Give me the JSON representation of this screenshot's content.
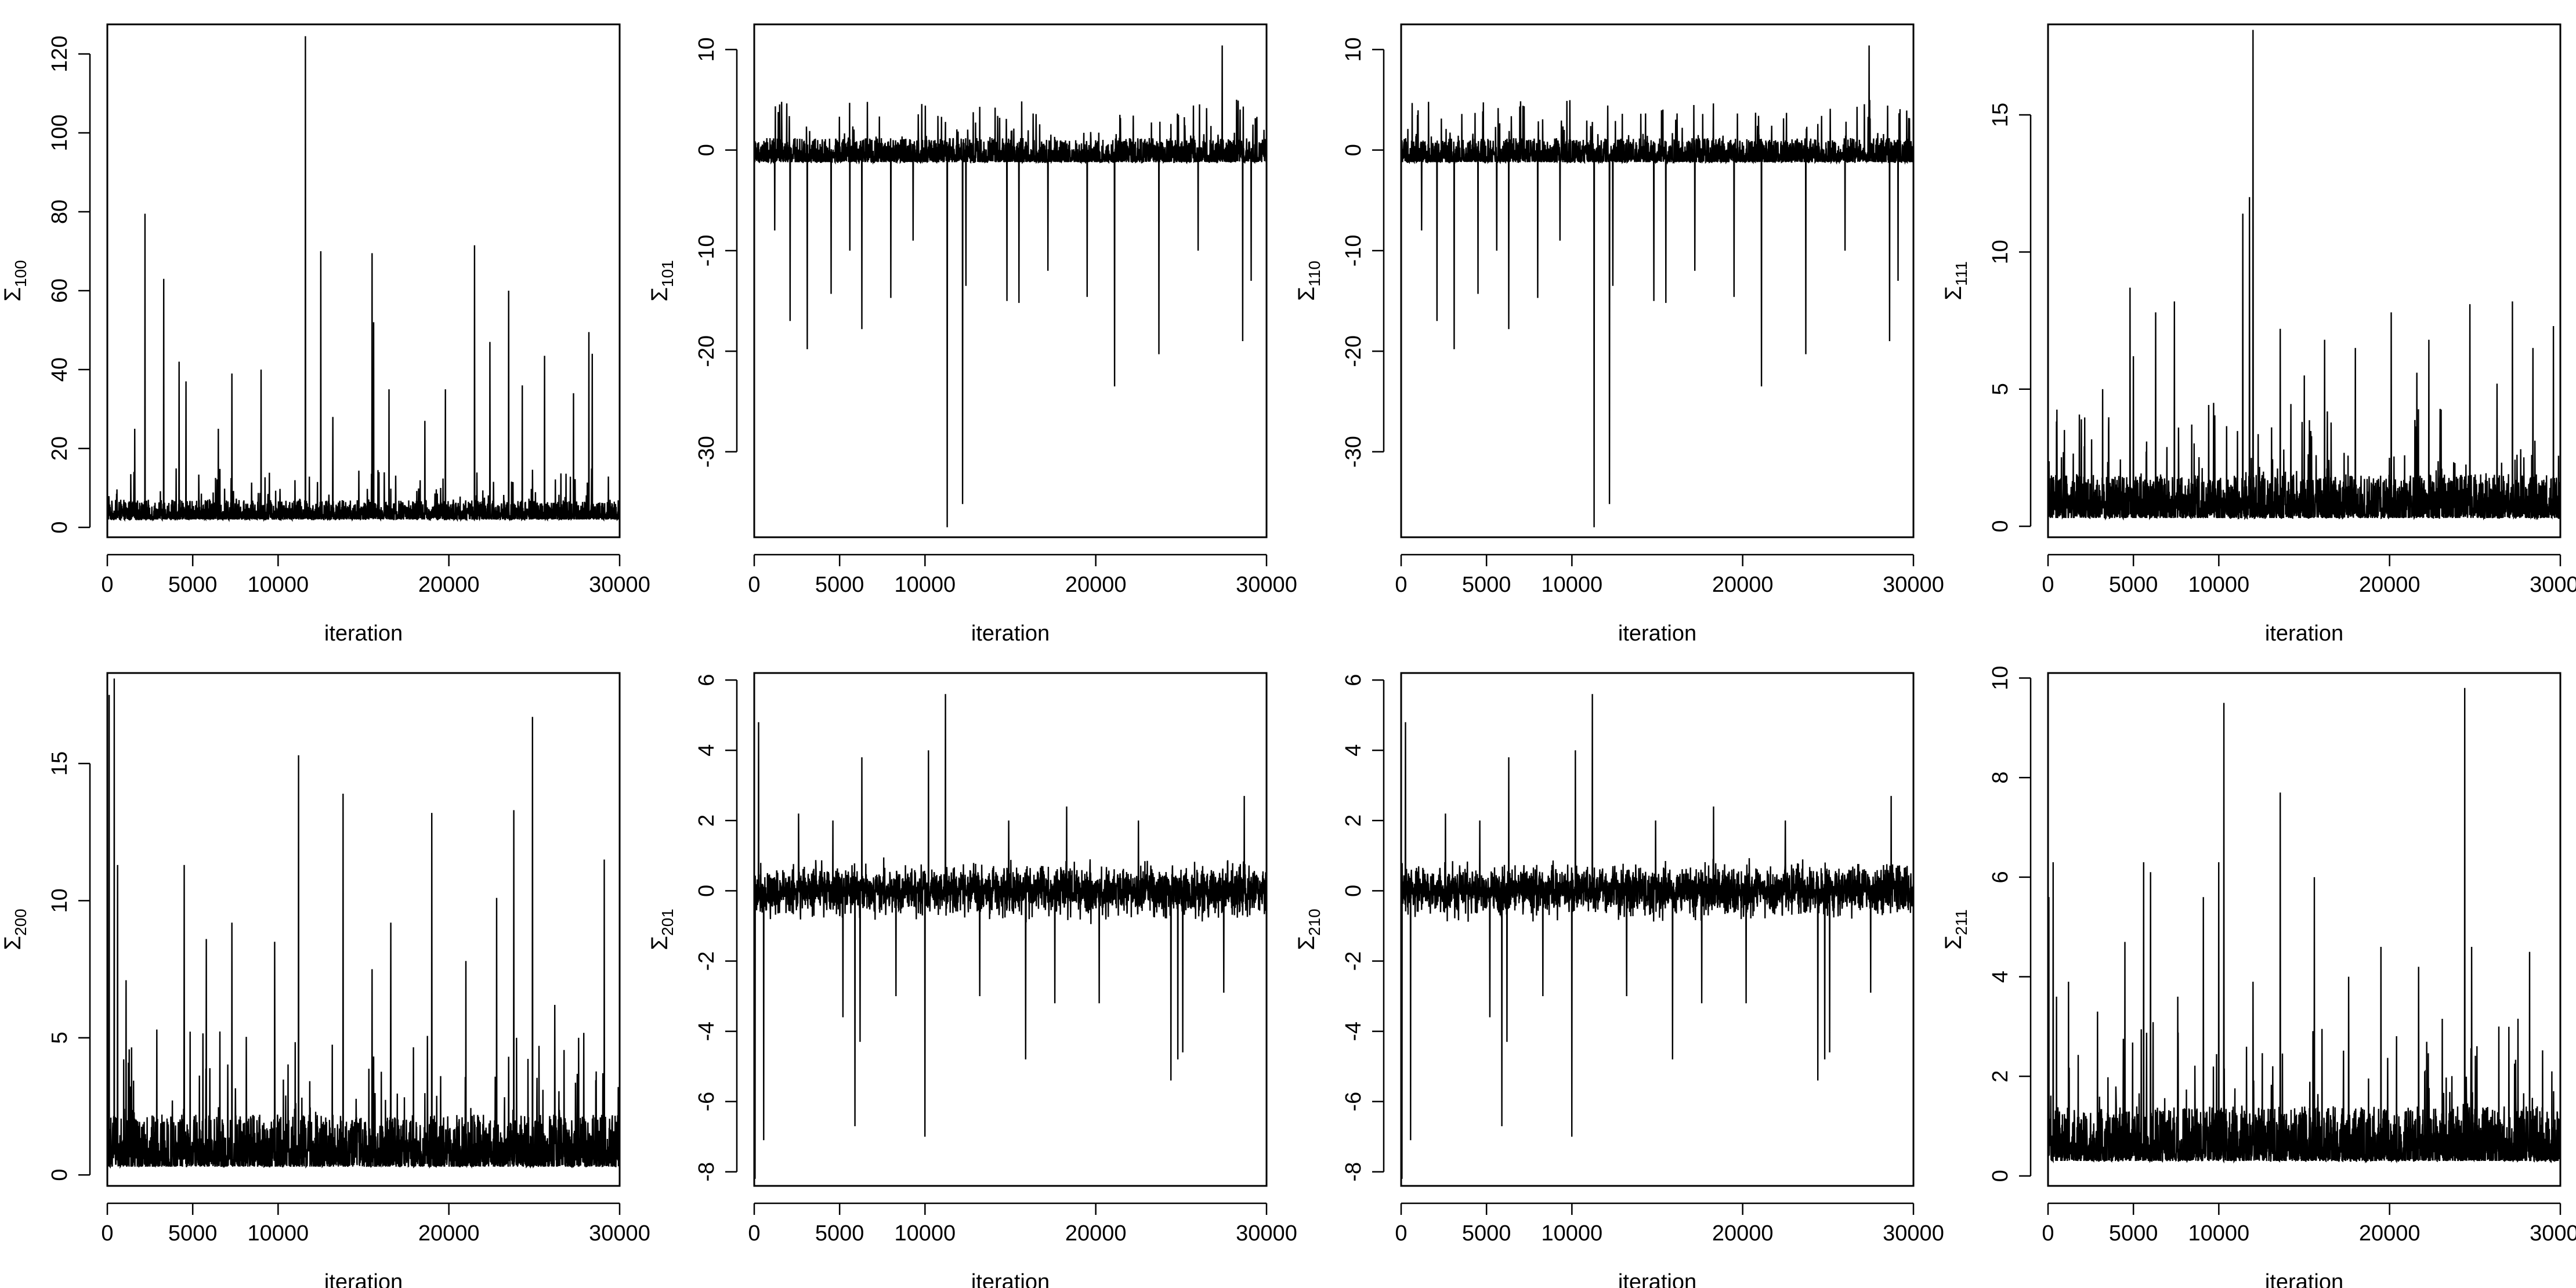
{
  "chart_data": [
    {
      "type": "line",
      "xlabel": "iteration",
      "ylabel_base": "Σ",
      "ylabel_sub": "100",
      "xlim": [
        0,
        30000
      ],
      "ylim": [
        -2.5,
        127.5
      ],
      "xticks": [
        0,
        5000,
        10000,
        20000,
        30000
      ],
      "yticks": [
        0,
        20,
        40,
        60,
        80,
        100,
        120
      ],
      "ytick_labels": [
        "0",
        "20",
        "40",
        "60",
        "80",
        "100",
        "120"
      ],
      "series": [
        {
          "baseline": 2.0,
          "noise_amp": 5.0,
          "noise_floor": 0.5,
          "spikes": [
            [
              2200,
              79.5
            ],
            [
              3300,
              63
            ],
            [
              4200,
              42
            ],
            [
              4600,
              37
            ],
            [
              7300,
              39
            ],
            [
              9000,
              40
            ],
            [
              11600,
              124.5
            ],
            [
              12500,
              70
            ],
            [
              15500,
              69.5
            ],
            [
              15600,
              52
            ],
            [
              16500,
              35
            ],
            [
              19800,
              35
            ],
            [
              21500,
              71.5
            ],
            [
              22400,
              47
            ],
            [
              23500,
              60
            ],
            [
              25600,
              43.5
            ],
            [
              27300,
              34
            ],
            [
              28200,
              49.5
            ],
            [
              28400,
              44
            ],
            [
              1600,
              25
            ],
            [
              6500,
              25
            ],
            [
              13200,
              28
            ],
            [
              18600,
              27
            ],
            [
              24300,
              36
            ]
          ]
        }
      ]
    },
    {
      "type": "line",
      "xlabel": "iteration",
      "ylabel_base": "Σ",
      "ylabel_sub": "101",
      "xlim": [
        0,
        30000
      ],
      "ylim": [
        -38.5,
        12.5
      ],
      "xticks": [
        0,
        5000,
        10000,
        20000,
        30000
      ],
      "yticks": [
        10,
        0,
        -10,
        -20,
        -30
      ],
      "ytick_labels": [
        "10",
        "0",
        "-10",
        "-20",
        "-30"
      ],
      "series": [
        {
          "baseline": -1.2,
          "noise_amp": 2.4,
          "noise_floor": 0.6,
          "upper_spikes": [
            [
              1600,
              4.8
            ],
            [
              11200,
              2.8
            ],
            [
              24400,
              2.6
            ],
            [
              27400,
              10.4
            ]
          ],
          "spikes": [
            [
              2100,
              -17
            ],
            [
              3100,
              -19.8
            ],
            [
              4500,
              -14.3
            ],
            [
              6300,
              -17.8
            ],
            [
              8000,
              -14.7
            ],
            [
              11300,
              -37.5
            ],
            [
              12200,
              -35.2
            ],
            [
              12400,
              -13.5
            ],
            [
              14800,
              -15.0
            ],
            [
              15500,
              -15.2
            ],
            [
              19500,
              -14.6
            ],
            [
              21100,
              -23.5
            ],
            [
              23700,
              -20.3
            ],
            [
              28600,
              -19
            ],
            [
              29100,
              -13
            ],
            [
              1200,
              -8
            ],
            [
              5600,
              -10
            ],
            [
              9300,
              -9
            ],
            [
              17200,
              -12
            ],
            [
              26000,
              -10
            ]
          ]
        }
      ]
    },
    {
      "type": "line",
      "xlabel": "iteration",
      "ylabel_base": "Σ",
      "ylabel_sub": "110",
      "xlim": [
        0,
        30000
      ],
      "ylim": [
        -38.5,
        12.5
      ],
      "xticks": [
        0,
        5000,
        10000,
        20000,
        30000
      ],
      "yticks": [
        10,
        0,
        -10,
        -20,
        -30
      ],
      "ytick_labels": [
        "10",
        "0",
        "-10",
        "-20",
        "-30"
      ],
      "series": [
        {
          "baseline": -1.2,
          "noise_amp": 2.4,
          "noise_floor": 0.6,
          "upper_spikes": [
            [
              1600,
              4.8
            ],
            [
              11200,
              2.8
            ],
            [
              24400,
              2.6
            ],
            [
              27400,
              10.4
            ]
          ],
          "spikes": [
            [
              2100,
              -17
            ],
            [
              3100,
              -19.8
            ],
            [
              4500,
              -14.3
            ],
            [
              6300,
              -17.8
            ],
            [
              8000,
              -14.7
            ],
            [
              11300,
              -37.5
            ],
            [
              12200,
              -35.2
            ],
            [
              12400,
              -13.5
            ],
            [
              14800,
              -15.0
            ],
            [
              15500,
              -15.2
            ],
            [
              19500,
              -14.6
            ],
            [
              21100,
              -23.5
            ],
            [
              23700,
              -20.3
            ],
            [
              28600,
              -19
            ],
            [
              29100,
              -13
            ],
            [
              1200,
              -8
            ],
            [
              5600,
              -10
            ],
            [
              9300,
              -9
            ],
            [
              17200,
              -12
            ],
            [
              26000,
              -10
            ]
          ]
        }
      ]
    },
    {
      "type": "line",
      "xlabel": "iteration",
      "ylabel_base": "Σ",
      "ylabel_sub": "111",
      "xlim": [
        0,
        30000
      ],
      "ylim": [
        -0.4,
        18.3
      ],
      "xticks": [
        0,
        5000,
        10000,
        20000,
        30000
      ],
      "yticks": [
        0,
        5,
        10,
        15
      ],
      "ytick_labels": [
        "0",
        "5",
        "10",
        "15"
      ],
      "series": [
        {
          "baseline": 0.3,
          "noise_amp": 1.6,
          "noise_floor": 0.1,
          "spikes": [
            [
              4800,
              8.7
            ],
            [
              5000,
              6.2
            ],
            [
              6300,
              7.8
            ],
            [
              7400,
              8.2
            ],
            [
              11400,
              11.4
            ],
            [
              12000,
              18.1
            ],
            [
              11800,
              12.0
            ],
            [
              13600,
              7.2
            ],
            [
              16200,
              6.8
            ],
            [
              18000,
              6.5
            ],
            [
              20100,
              7.8
            ],
            [
              22300,
              6.8
            ],
            [
              24700,
              8.1
            ],
            [
              27200,
              8.2
            ],
            [
              28400,
              6.5
            ],
            [
              29600,
              7.3
            ],
            [
              3200,
              5.0
            ],
            [
              9700,
              4.5
            ],
            [
              15000,
              5.5
            ],
            [
              21600,
              5.6
            ],
            [
              26300,
              5.2
            ]
          ]
        }
      ]
    },
    {
      "type": "line",
      "xlabel": "iteration",
      "ylabel_base": "Σ",
      "ylabel_sub": "200",
      "xlim": [
        0,
        30000
      ],
      "ylim": [
        -0.4,
        18.3
      ],
      "xticks": [
        0,
        5000,
        10000,
        20000,
        30000
      ],
      "yticks": [
        0,
        5,
        10,
        15
      ],
      "ytick_labels": [
        "0",
        "5",
        "10",
        "15"
      ],
      "series": [
        {
          "baseline": 0.3,
          "noise_amp": 1.9,
          "noise_floor": 0.1,
          "spikes": [
            [
              100,
              17.5
            ],
            [
              400,
              18.1
            ],
            [
              600,
              11.3
            ],
            [
              1100,
              7.1
            ],
            [
              4500,
              11.3
            ],
            [
              5800,
              8.6
            ],
            [
              7300,
              9.2
            ],
            [
              11200,
              15.3
            ],
            [
              13800,
              13.9
            ],
            [
              16600,
              9.2
            ],
            [
              19000,
              13.2
            ],
            [
              22800,
              10.1
            ],
            [
              23800,
              13.3
            ],
            [
              24900,
              16.7
            ],
            [
              27600,
              5.0
            ],
            [
              29100,
              11.5
            ],
            [
              2900,
              5.3
            ],
            [
              9800,
              8.5
            ],
            [
              15500,
              7.5
            ],
            [
              21000,
              7.8
            ],
            [
              26200,
              6.2
            ]
          ]
        }
      ]
    },
    {
      "type": "line",
      "xlabel": "iteration",
      "ylabel_base": "Σ",
      "ylabel_sub": "201",
      "xlim": [
        0,
        30000
      ],
      "ylim": [
        -8.4,
        6.2
      ],
      "xticks": [
        0,
        5000,
        10000,
        20000,
        30000
      ],
      "yticks": [
        6,
        4,
        2,
        0,
        -2,
        -4,
        -6,
        -8
      ],
      "ytick_labels": [
        "6",
        "4",
        "2",
        "0",
        "-2",
        "-4",
        "-6",
        "-8"
      ],
      "series": [
        {
          "baseline": 0.0,
          "noise_amp": 0.55,
          "noise_floor": 0.0,
          "symmetric": true,
          "upper_spikes": [
            [
              250,
              4.8
            ],
            [
              2600,
              2.2
            ],
            [
              6300,
              3.8
            ],
            [
              10200,
              4.0
            ],
            [
              11200,
              5.6
            ],
            [
              18300,
              2.4
            ],
            [
              28700,
              2.7
            ],
            [
              4600,
              2.0
            ],
            [
              14900,
              2.0
            ],
            [
              22500,
              2.0
            ]
          ],
          "spikes": [
            [
              50,
              -8.2
            ],
            [
              550,
              -7.1
            ],
            [
              5200,
              -3.6
            ],
            [
              5900,
              -6.7
            ],
            [
              6200,
              -4.3
            ],
            [
              10000,
              -7.0
            ],
            [
              15900,
              -4.8
            ],
            [
              20200,
              -3.2
            ],
            [
              24400,
              -5.4
            ],
            [
              24800,
              -4.8
            ],
            [
              25100,
              -4.6
            ],
            [
              8300,
              -3.0
            ],
            [
              13200,
              -3.0
            ],
            [
              17600,
              -3.2
            ],
            [
              27500,
              -2.9
            ]
          ]
        }
      ]
    },
    {
      "type": "line",
      "xlabel": "iteration",
      "ylabel_base": "Σ",
      "ylabel_sub": "210",
      "xlim": [
        0,
        30000
      ],
      "ylim": [
        -8.4,
        6.2
      ],
      "xticks": [
        0,
        5000,
        10000,
        20000,
        30000
      ],
      "yticks": [
        6,
        4,
        2,
        0,
        -2,
        -4,
        -6,
        -8
      ],
      "ytick_labels": [
        "6",
        "4",
        "2",
        "0",
        "-2",
        "-4",
        "-6",
        "-8"
      ],
      "series": [
        {
          "baseline": 0.0,
          "noise_amp": 0.55,
          "noise_floor": 0.0,
          "symmetric": true,
          "upper_spikes": [
            [
              250,
              4.8
            ],
            [
              2600,
              2.2
            ],
            [
              6300,
              3.8
            ],
            [
              10200,
              4.0
            ],
            [
              11200,
              5.6
            ],
            [
              18300,
              2.4
            ],
            [
              28700,
              2.7
            ],
            [
              4600,
              2.0
            ],
            [
              14900,
              2.0
            ],
            [
              22500,
              2.0
            ]
          ],
          "spikes": [
            [
              50,
              -8.2
            ],
            [
              550,
              -7.1
            ],
            [
              5200,
              -3.6
            ],
            [
              5900,
              -6.7
            ],
            [
              6200,
              -4.3
            ],
            [
              10000,
              -7.0
            ],
            [
              15900,
              -4.8
            ],
            [
              20200,
              -3.2
            ],
            [
              24400,
              -5.4
            ],
            [
              24800,
              -4.8
            ],
            [
              25100,
              -4.6
            ],
            [
              8300,
              -3.0
            ],
            [
              13200,
              -3.0
            ],
            [
              17600,
              -3.2
            ],
            [
              27500,
              -2.9
            ]
          ]
        }
      ]
    },
    {
      "type": "line",
      "xlabel": "iteration",
      "ylabel_base": "Σ",
      "ylabel_sub": "211",
      "xlim": [
        0,
        30000
      ],
      "ylim": [
        -0.2,
        10.1
      ],
      "xticks": [
        0,
        5000,
        10000,
        20000,
        30000
      ],
      "yticks": [
        0,
        2,
        4,
        6,
        8,
        10
      ],
      "ytick_labels": [
        "0",
        "2",
        "4",
        "6",
        "8",
        "10"
      ],
      "series": [
        {
          "baseline": 0.3,
          "noise_amp": 1.1,
          "noise_floor": 0.1,
          "spikes": [
            [
              50,
              5.6
            ],
            [
              300,
              6.3
            ],
            [
              500,
              3.6
            ],
            [
              1200,
              3.9
            ],
            [
              4500,
              4.7
            ],
            [
              5600,
              6.3
            ],
            [
              6000,
              6.1
            ],
            [
              9100,
              5.6
            ],
            [
              10000,
              6.3
            ],
            [
              10300,
              9.5
            ],
            [
              13600,
              7.7
            ],
            [
              15600,
              6.0
            ],
            [
              19500,
              4.6
            ],
            [
              24400,
              9.8
            ],
            [
              24800,
              4.6
            ],
            [
              28200,
              4.5
            ],
            [
              29500,
              2.1
            ],
            [
              2900,
              3.3
            ],
            [
              7600,
              3.6
            ],
            [
              12000,
              3.9
            ],
            [
              17600,
              4.0
            ],
            [
              21700,
              4.2
            ],
            [
              26400,
              3.0
            ]
          ]
        }
      ]
    }
  ]
}
